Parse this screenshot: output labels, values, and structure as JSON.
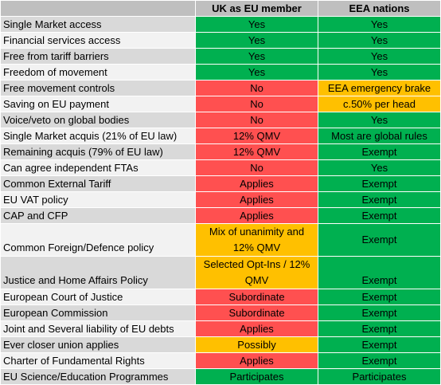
{
  "header": {
    "blank": "",
    "col1": "UK as EU member",
    "col2": "EEA nations"
  },
  "colors": {
    "green": "#00b050",
    "red": "#ff5050",
    "amber": "#ffc000",
    "header": "#bfbfbf",
    "row_dark": "#d9d9d9",
    "row_light": "#f2f2f2"
  },
  "rows": [
    {
      "label": "Single Market access",
      "uk": "Yes",
      "eea": "Yes"
    },
    {
      "label": "Financial services access",
      "uk": "Yes",
      "eea": "Yes"
    },
    {
      "label": "Free from tariff barriers",
      "uk": "Yes",
      "eea": "Yes"
    },
    {
      "label": "Freedom of movement",
      "uk": "Yes",
      "eea": "Yes"
    },
    {
      "label": "Free movement controls",
      "uk": "No",
      "eea": "EEA emergency brake"
    },
    {
      "label": "Saving on EU payment",
      "uk": "No",
      "eea": "c.50% per head"
    },
    {
      "label": "Voice/veto on global bodies",
      "uk": "No",
      "eea": "Yes"
    },
    {
      "label": "Single Market acquis (21% of EU law)",
      "uk": "12% QMV",
      "eea": "Most are global rules"
    },
    {
      "label": "Remaining acquis (79% of EU law)",
      "uk": "12% QMV",
      "eea": "Exempt"
    },
    {
      "label": "Can agree independent FTAs",
      "uk": "No",
      "eea": "Yes"
    },
    {
      "label": "Common External Tariff",
      "uk": "Applies",
      "eea": "Exempt"
    },
    {
      "label": "EU VAT policy",
      "uk": "Applies",
      "eea": "Exempt"
    },
    {
      "label": "CAP and CFP",
      "uk": "Applies",
      "eea": "Exempt"
    },
    {
      "label": "Common Foreign/Defence policy",
      "uk": "Mix of unanimity and 12% QMV",
      "eea": "Exempt"
    },
    {
      "label": "Justice and Home Affairs Policy",
      "uk": "Selected Opt-Ins / 12% QMV",
      "eea": "Exempt"
    },
    {
      "label": "European Court of Justice",
      "uk": "Subordinate",
      "eea": "Exempt"
    },
    {
      "label": "European Commission",
      "uk": "Subordinate",
      "eea": "Exempt"
    },
    {
      "label": "Joint and Several liability of EU debts",
      "uk": "Applies",
      "eea": "Exempt"
    },
    {
      "label": "Ever closer union applies",
      "uk": "Possibly",
      "eea": "Exempt"
    },
    {
      "label": "Charter of Fundamental Rights",
      "uk": "Applies",
      "eea": "Exempt"
    },
    {
      "label": "EU Science/Education Programmes",
      "uk": "Participates",
      "eea": "Participates"
    }
  ]
}
